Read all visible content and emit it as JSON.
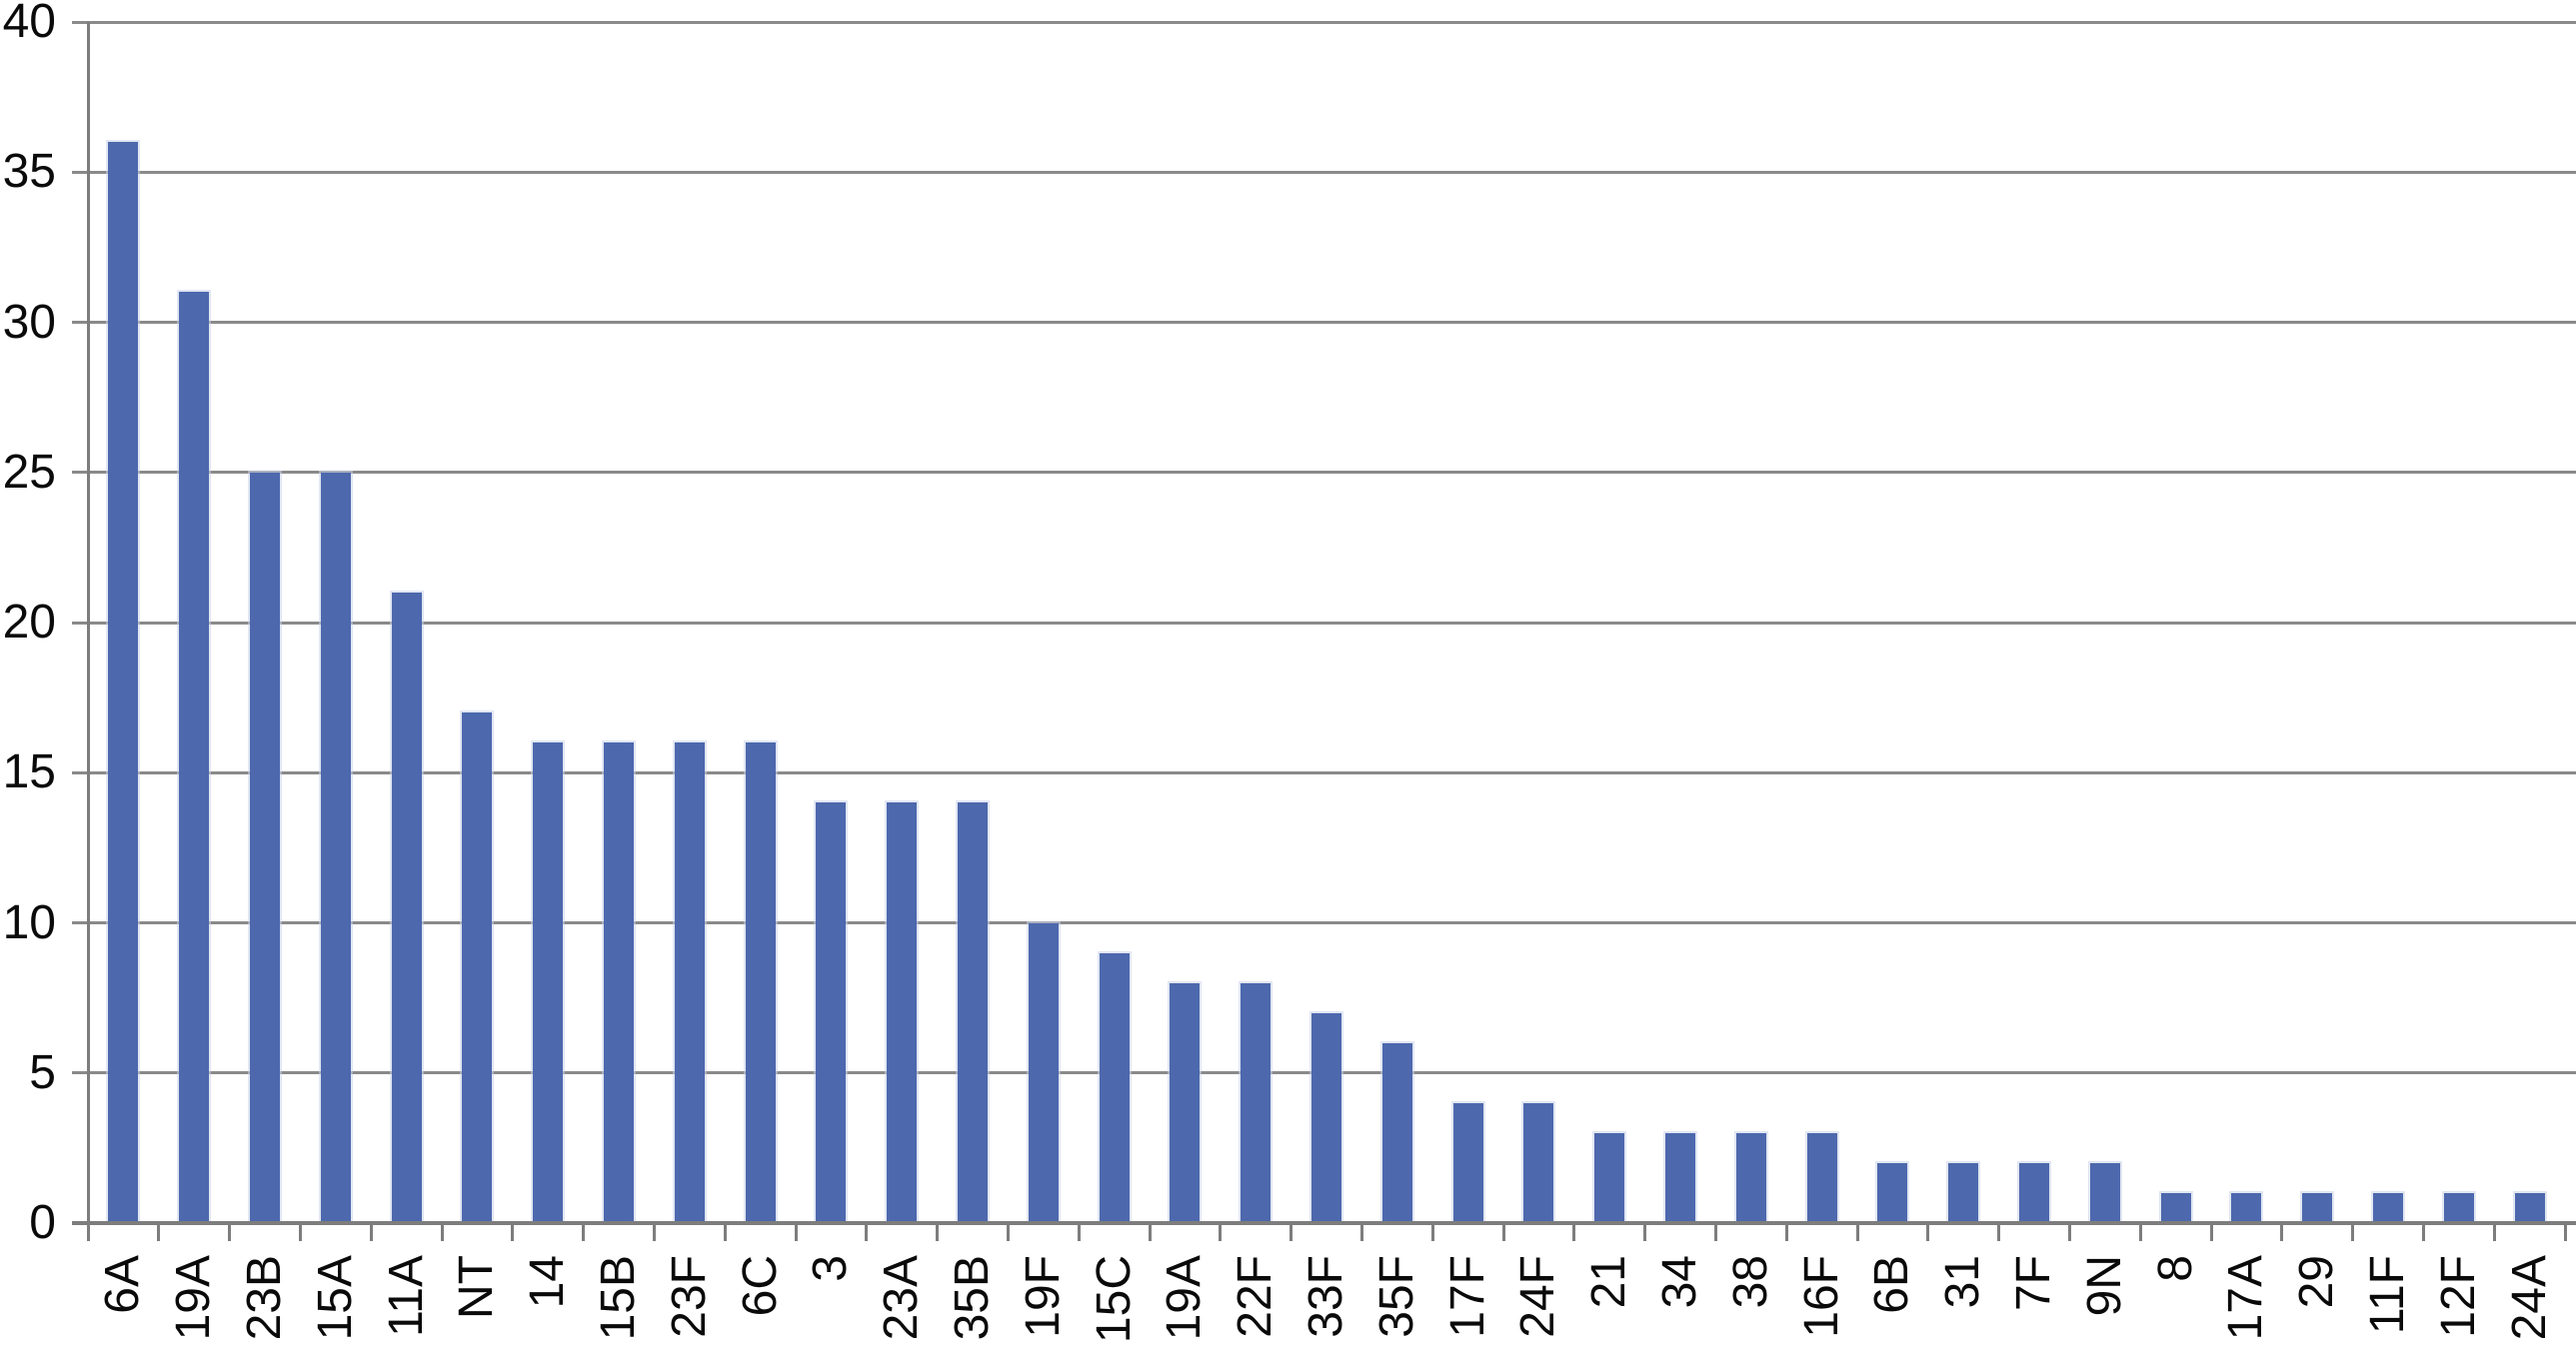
{
  "chart_data": {
    "type": "bar",
    "title": "",
    "xlabel": "",
    "ylabel": "",
    "categories": [
      "6A",
      "19A",
      "23B",
      "15A",
      "11A",
      "NT",
      "14",
      "15B",
      "23F",
      "6C",
      "3",
      "23A",
      "35B",
      "19F",
      "15C",
      "19A",
      "22F",
      "33F",
      "35F",
      "17F",
      "24F",
      "21",
      "34",
      "38",
      "16F",
      "6B",
      "31",
      "7F",
      "9N",
      "8",
      "17A",
      "29",
      "11F",
      "12F",
      "24A"
    ],
    "values": [
      36,
      31,
      25,
      25,
      21,
      17,
      16,
      16,
      16,
      16,
      14,
      14,
      14,
      10,
      9,
      8,
      8,
      7,
      6,
      4,
      4,
      3,
      3,
      3,
      3,
      2,
      2,
      2,
      2,
      1,
      1,
      1,
      1,
      1,
      1
    ],
    "ylim": [
      0,
      40
    ],
    "yticks": [
      0,
      5,
      10,
      15,
      20,
      25,
      30,
      35,
      40
    ],
    "grid": true,
    "legend": false,
    "x_label_rotation_degrees": 90,
    "colors": {
      "bar_fill": "#4d68ad",
      "bar_edge_halo": "#c8d2ea",
      "gridline": "#8a8a8a",
      "axis": "#7d7d7d",
      "tick_label": "#0a0a0a",
      "background": "#ffffff"
    }
  }
}
